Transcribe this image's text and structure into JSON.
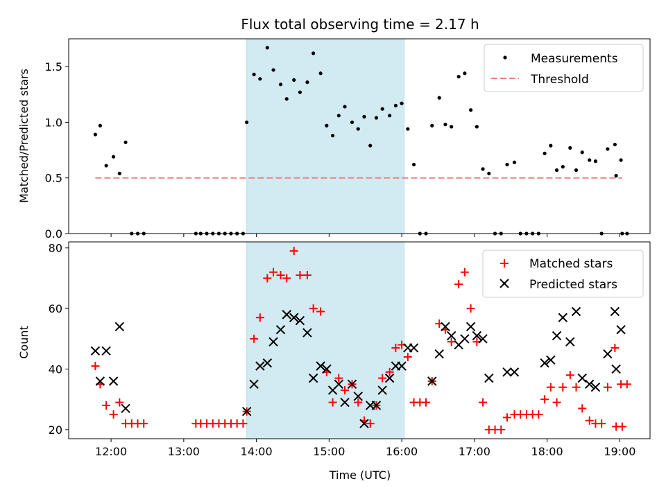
{
  "chart_data": [
    {
      "type": "scatter",
      "title": "Flux total observing time = 2.17 h",
      "xlabel": "",
      "ylabel": "Matched/Predicted stars",
      "xlim": [
        "11:25",
        "19:25"
      ],
      "ylim": [
        0,
        1.75
      ],
      "y_ticks": [
        0.0,
        0.5,
        1.0,
        1.5
      ],
      "y_tick_labels": [
        "0.0",
        "0.5",
        "1.0",
        "1.5"
      ],
      "highlight_span": {
        "from": "13:52",
        "to": "16:02",
        "color": "#add8e6"
      },
      "legend_position": "upper right",
      "series": [
        {
          "name": "Measurements",
          "marker": "dot",
          "color": "#000000",
          "points": [
            [
              "11:47",
              0.89
            ],
            [
              "11:51",
              0.97
            ],
            [
              "11:56",
              0.61
            ],
            [
              "12:02",
              0.69
            ],
            [
              "12:07",
              0.54
            ],
            [
              "12:12",
              0.82
            ],
            [
              "12:17",
              0.0
            ],
            [
              "12:22",
              0.0
            ],
            [
              "12:27",
              0.0
            ],
            [
              "13:10",
              0.0
            ],
            [
              "13:14",
              0.0
            ],
            [
              "13:19",
              0.0
            ],
            [
              "13:24",
              0.0
            ],
            [
              "13:29",
              0.0
            ],
            [
              "13:34",
              0.0
            ],
            [
              "13:39",
              0.0
            ],
            [
              "13:44",
              0.0
            ],
            [
              "13:49",
              0.0
            ],
            [
              "13:52",
              1.0
            ],
            [
              "13:58",
              1.43
            ],
            [
              "14:03",
              1.39
            ],
            [
              "14:09",
              1.67
            ],
            [
              "14:14",
              1.47
            ],
            [
              "14:20",
              1.34
            ],
            [
              "14:25",
              1.21
            ],
            [
              "14:31",
              1.38
            ],
            [
              "14:36",
              1.27
            ],
            [
              "14:42",
              1.36
            ],
            [
              "14:47",
              1.62
            ],
            [
              "14:53",
              1.44
            ],
            [
              "14:58",
              0.97
            ],
            [
              "15:03",
              0.88
            ],
            [
              "15:08",
              1.06
            ],
            [
              "15:13",
              1.14
            ],
            [
              "15:19",
              1.0
            ],
            [
              "15:24",
              0.94
            ],
            [
              "15:29",
              1.05
            ],
            [
              "15:34",
              0.79
            ],
            [
              "15:39",
              1.04
            ],
            [
              "15:44",
              1.12
            ],
            [
              "15:50",
              1.06
            ],
            [
              "15:55",
              1.15
            ],
            [
              "16:00",
              1.17
            ],
            [
              "16:05",
              0.94
            ],
            [
              "16:10",
              0.62
            ],
            [
              "16:15",
              0.0
            ],
            [
              "16:20",
              0.0
            ],
            [
              "16:25",
              0.97
            ],
            [
              "16:31",
              1.22
            ],
            [
              "16:36",
              0.98
            ],
            [
              "16:41",
              0.96
            ],
            [
              "16:47",
              1.41
            ],
            [
              "16:52",
              1.44
            ],
            [
              "16:57",
              1.11
            ],
            [
              "17:02",
              0.96
            ],
            [
              "17:07",
              0.58
            ],
            [
              "17:12",
              0.54
            ],
            [
              "17:17",
              0.0
            ],
            [
              "17:22",
              0.0
            ],
            [
              "17:27",
              0.62
            ],
            [
              "17:33",
              0.64
            ],
            [
              "17:38",
              0.0
            ],
            [
              "17:43",
              0.0
            ],
            [
              "17:48",
              0.0
            ],
            [
              "17:53",
              0.0
            ],
            [
              "17:58",
              0.72
            ],
            [
              "18:03",
              0.79
            ],
            [
              "18:08",
              0.57
            ],
            [
              "18:13",
              0.6
            ],
            [
              "18:19",
              0.77
            ],
            [
              "18:24",
              0.57
            ],
            [
              "18:29",
              0.73
            ],
            [
              "18:35",
              0.66
            ],
            [
              "18:40",
              0.65
            ],
            [
              "18:45",
              0.0
            ],
            [
              "18:50",
              0.76
            ],
            [
              "18:56",
              0.8
            ],
            [
              "19:01",
              0.66
            ],
            [
              "19:06",
              0.0
            ],
            [
              "18:57",
              0.52
            ],
            [
              "19:02",
              0.0
            ]
          ]
        },
        {
          "name": "Threshold",
          "marker": "dashed-line",
          "color": "#f08080",
          "points": [
            [
              "11:47",
              0.5
            ],
            [
              "19:02",
              0.5
            ]
          ]
        }
      ]
    },
    {
      "type": "scatter",
      "title": "",
      "xlabel": "Time (UTC)",
      "ylabel": "Count",
      "xlim": [
        "11:25",
        "19:25"
      ],
      "ylim": [
        17,
        82
      ],
      "y_ticks": [
        20,
        40,
        60,
        80
      ],
      "y_tick_labels": [
        "20",
        "40",
        "60",
        "80"
      ],
      "x_ticks": [
        "12:00",
        "13:00",
        "14:00",
        "15:00",
        "16:00",
        "17:00",
        "18:00",
        "19:00"
      ],
      "x_tick_labels": [
        "12:00",
        "13:00",
        "14:00",
        "15:00",
        "16:00",
        "17:00",
        "18:00",
        "19:00"
      ],
      "highlight_span": {
        "from": "13:52",
        "to": "16:02",
        "color": "#add8e6"
      },
      "legend_position": "upper right",
      "series": [
        {
          "name": "Matched stars",
          "marker": "plus",
          "color": "#ff0000",
          "points": [
            [
              "11:47",
              41
            ],
            [
              "11:51",
              35
            ],
            [
              "11:56",
              28
            ],
            [
              "12:02",
              25
            ],
            [
              "12:07",
              29
            ],
            [
              "12:12",
              22
            ],
            [
              "12:17",
              22
            ],
            [
              "12:22",
              22
            ],
            [
              "12:27",
              22
            ],
            [
              "13:10",
              22
            ],
            [
              "13:14",
              22
            ],
            [
              "13:19",
              22
            ],
            [
              "13:24",
              22
            ],
            [
              "13:29",
              22
            ],
            [
              "13:34",
              22
            ],
            [
              "13:39",
              22
            ],
            [
              "13:44",
              22
            ],
            [
              "13:49",
              22
            ],
            [
              "13:52",
              26
            ],
            [
              "13:58",
              50
            ],
            [
              "14:03",
              57
            ],
            [
              "14:09",
              70
            ],
            [
              "14:14",
              72
            ],
            [
              "14:20",
              71
            ],
            [
              "14:25",
              70
            ],
            [
              "14:31",
              79
            ],
            [
              "14:36",
              71
            ],
            [
              "14:42",
              71
            ],
            [
              "14:47",
              60
            ],
            [
              "14:53",
              59
            ],
            [
              "14:58",
              39
            ],
            [
              "15:03",
              29
            ],
            [
              "15:08",
              37
            ],
            [
              "15:13",
              33
            ],
            [
              "15:19",
              35
            ],
            [
              "15:24",
              29
            ],
            [
              "15:29",
              23
            ],
            [
              "15:34",
              22
            ],
            [
              "15:39",
              28
            ],
            [
              "15:44",
              37
            ],
            [
              "15:50",
              39
            ],
            [
              "15:55",
              47
            ],
            [
              "16:00",
              48
            ],
            [
              "16:05",
              44
            ],
            [
              "16:10",
              29
            ],
            [
              "16:15",
              29
            ],
            [
              "16:20",
              29
            ],
            [
              "16:25",
              36
            ],
            [
              "16:31",
              55
            ],
            [
              "16:36",
              53
            ],
            [
              "16:41",
              49
            ],
            [
              "16:47",
              68
            ],
            [
              "16:52",
              72
            ],
            [
              "16:57",
              60
            ],
            [
              "17:02",
              49
            ],
            [
              "17:07",
              29
            ],
            [
              "17:12",
              20
            ],
            [
              "17:17",
              20
            ],
            [
              "17:22",
              20
            ],
            [
              "17:27",
              24
            ],
            [
              "17:33",
              25
            ],
            [
              "17:38",
              25
            ],
            [
              "17:43",
              25
            ],
            [
              "17:48",
              25
            ],
            [
              "17:53",
              25
            ],
            [
              "17:58",
              30
            ],
            [
              "18:03",
              34
            ],
            [
              "18:08",
              29
            ],
            [
              "18:13",
              34
            ],
            [
              "18:19",
              38
            ],
            [
              "18:24",
              34
            ],
            [
              "18:29",
              27
            ],
            [
              "18:35",
              23
            ],
            [
              "18:40",
              22
            ],
            [
              "18:45",
              22
            ],
            [
              "18:50",
              34
            ],
            [
              "18:56",
              47
            ],
            [
              "19:01",
              35
            ],
            [
              "19:06",
              35
            ],
            [
              "18:57",
              21
            ],
            [
              "19:02",
              21
            ]
          ]
        },
        {
          "name": "Predicted stars",
          "marker": "x",
          "color": "#000000",
          "points": [
            [
              "11:47",
              46
            ],
            [
              "11:51",
              36
            ],
            [
              "11:56",
              46
            ],
            [
              "12:02",
              36
            ],
            [
              "12:07",
              54
            ],
            [
              "12:12",
              27
            ],
            [
              "13:52",
              26
            ],
            [
              "13:58",
              35
            ],
            [
              "14:03",
              41
            ],
            [
              "14:09",
              42
            ],
            [
              "14:14",
              49
            ],
            [
              "14:20",
              53
            ],
            [
              "14:25",
              58
            ],
            [
              "14:31",
              57
            ],
            [
              "14:36",
              56
            ],
            [
              "14:42",
              52
            ],
            [
              "14:47",
              37
            ],
            [
              "14:53",
              41
            ],
            [
              "14:58",
              40
            ],
            [
              "15:03",
              33
            ],
            [
              "15:08",
              35
            ],
            [
              "15:13",
              29
            ],
            [
              "15:19",
              35
            ],
            [
              "15:24",
              31
            ],
            [
              "15:29",
              22
            ],
            [
              "15:34",
              28
            ],
            [
              "15:39",
              28
            ],
            [
              "15:44",
              33
            ],
            [
              "15:50",
              37
            ],
            [
              "15:55",
              41
            ],
            [
              "16:00",
              41
            ],
            [
              "16:05",
              47
            ],
            [
              "16:10",
              47
            ],
            [
              "16:25",
              36
            ],
            [
              "16:31",
              45
            ],
            [
              "16:36",
              54
            ],
            [
              "16:41",
              51
            ],
            [
              "16:47",
              48
            ],
            [
              "16:52",
              50
            ],
            [
              "16:57",
              54
            ],
            [
              "17:02",
              51
            ],
            [
              "17:07",
              50
            ],
            [
              "17:12",
              37
            ],
            [
              "17:27",
              39
            ],
            [
              "17:33",
              39
            ],
            [
              "17:58",
              42
            ],
            [
              "18:03",
              43
            ],
            [
              "18:08",
              51
            ],
            [
              "18:13",
              57
            ],
            [
              "18:19",
              49
            ],
            [
              "18:24",
              59
            ],
            [
              "18:29",
              37
            ],
            [
              "18:35",
              35
            ],
            [
              "18:40",
              34
            ],
            [
              "18:50",
              45
            ],
            [
              "18:56",
              59
            ],
            [
              "19:01",
              53
            ],
            [
              "18:57",
              40
            ]
          ]
        }
      ]
    }
  ]
}
